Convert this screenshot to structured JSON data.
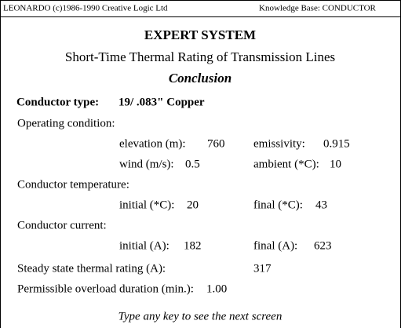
{
  "header": {
    "left": "LEONARDO (c)1986-1990  Creative Logic Ltd",
    "right": "Knowledge Base: CONDUCTOR"
  },
  "title": "EXPERT SYSTEM",
  "subtitle": "Short-Time Thermal Rating of Transmission Lines",
  "section": "Conclusion",
  "conductor_type": {
    "label": "Conductor type:",
    "value": "19/ .083\" Copper"
  },
  "operating_condition": {
    "heading": "Operating condition:",
    "elevation": {
      "label": "elevation (m):",
      "value": "760"
    },
    "emissivity": {
      "label": "emissivity:",
      "value": "0.915"
    },
    "wind": {
      "label": "wind (m/s):",
      "value": "0.5"
    },
    "ambient": {
      "label": "ambient (*C):",
      "value": "10"
    }
  },
  "conductor_temperature": {
    "heading": "Conductor temperature:",
    "initial": {
      "label": "initial (*C):",
      "value": "20"
    },
    "final": {
      "label": "final (*C):",
      "value": "43"
    }
  },
  "conductor_current": {
    "heading": "Conductor current:",
    "initial": {
      "label": "initial (A):",
      "value": "182"
    },
    "final": {
      "label": "final (A):",
      "value": "623"
    }
  },
  "steady_state": {
    "label": "Steady state thermal rating (A):",
    "value": "317"
  },
  "overload": {
    "label": "Permissible overload duration (min.):",
    "value": "1.00"
  },
  "footer": "Type any key to see the next screen"
}
